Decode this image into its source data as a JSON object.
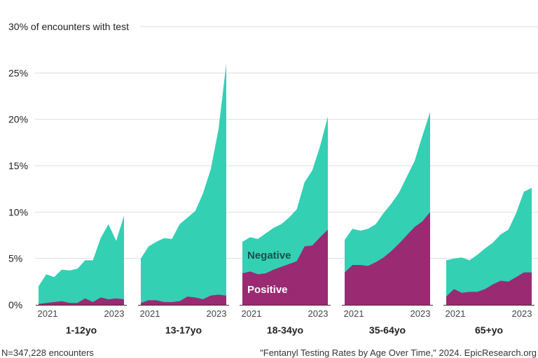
{
  "chart_data": {
    "type": "area",
    "y_label_top": "30% of encounters with test",
    "y_ticks": [
      "0%",
      "5%",
      "10%",
      "15%",
      "20%",
      "25%"
    ],
    "y_tick_values": [
      0,
      5,
      10,
      15,
      20,
      25
    ],
    "y_top_value": 30,
    "ylim": [
      0,
      30
    ],
    "x_tick_labels": [
      "2021",
      "2023"
    ],
    "colors": {
      "negative": "#33d0b4",
      "positive": "#9a2a72",
      "grid": "#dddddd",
      "axis": "#333333",
      "text": "#222222"
    },
    "area_labels": {
      "negative": "Negative",
      "positive": "Positive"
    },
    "groups": [
      {
        "label": "1-12yo",
        "total": [
          2.0,
          3.3,
          3.0,
          3.8,
          3.7,
          3.9,
          4.8,
          4.8,
          7.2,
          8.7,
          6.9,
          9.6
        ],
        "positive": [
          0.1,
          0.2,
          0.3,
          0.4,
          0.2,
          0.2,
          0.7,
          0.3,
          0.8,
          0.6,
          0.7,
          0.6
        ]
      },
      {
        "label": "13-17yo",
        "total": [
          5.0,
          6.3,
          6.8,
          7.2,
          7.1,
          8.7,
          9.4,
          10.1,
          12.0,
          14.6,
          18.9,
          26.0
        ],
        "positive": [
          0.2,
          0.5,
          0.5,
          0.3,
          0.3,
          0.4,
          0.9,
          0.8,
          0.6,
          1.0,
          1.1,
          1.0
        ]
      },
      {
        "label": "18-34yo",
        "total": [
          6.8,
          7.3,
          7.1,
          7.7,
          8.3,
          8.7,
          9.4,
          10.3,
          13.2,
          14.5,
          17.1,
          20.3
        ],
        "positive": [
          3.4,
          3.6,
          3.3,
          3.4,
          3.8,
          4.1,
          4.4,
          4.7,
          6.3,
          6.4,
          7.3,
          8.1
        ]
      },
      {
        "label": "35-64yo",
        "total": [
          7.0,
          8.2,
          8.0,
          8.2,
          8.7,
          9.9,
          10.9,
          12.1,
          13.8,
          15.5,
          18.2,
          20.8
        ],
        "positive": [
          3.5,
          4.3,
          4.3,
          4.2,
          4.6,
          5.1,
          5.8,
          6.6,
          7.5,
          8.4,
          9.0,
          10.0
        ]
      },
      {
        "label": "65+yo",
        "total": [
          4.8,
          5.0,
          5.1,
          4.8,
          5.4,
          6.1,
          6.7,
          7.6,
          8.1,
          9.9,
          12.2,
          12.6
        ],
        "positive": [
          0.9,
          1.7,
          1.3,
          1.4,
          1.4,
          1.7,
          2.2,
          2.6,
          2.5,
          3.0,
          3.5,
          3.5
        ]
      }
    ]
  },
  "footer": {
    "left": "N=347,228 encounters",
    "right": "\"Fentanyl Testing Rates by Age Over Time,\" 2024. EpicResearch.org"
  }
}
